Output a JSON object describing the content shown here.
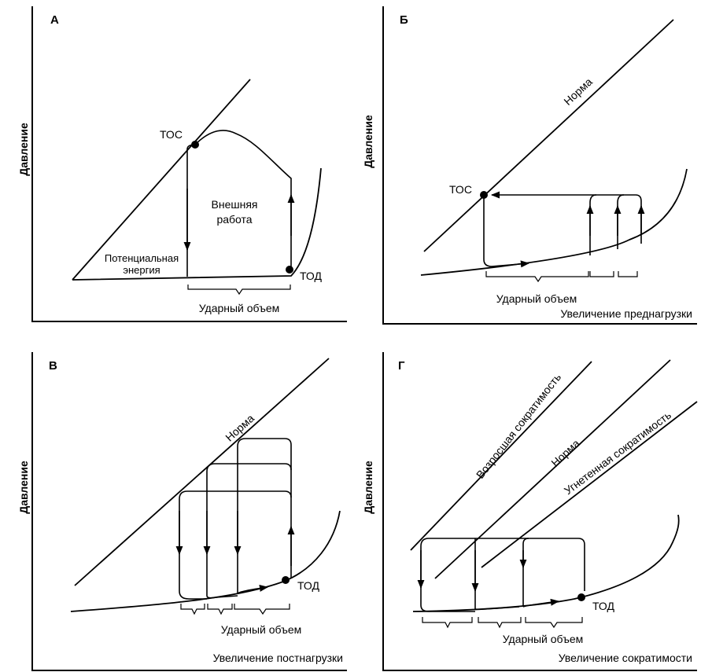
{
  "panels": {
    "a": {
      "label": "А",
      "y_axis": "Давление",
      "esp": "ТОС",
      "edp": "ТОД",
      "work": [
        "Внешняя",
        "работа"
      ],
      "potential": [
        "Потенциальная",
        "энергия"
      ],
      "stroke_volume": "Ударный объем"
    },
    "b": {
      "label": "Б",
      "y_axis": "Давление",
      "norm": "Норма",
      "esp": "ТОС",
      "stroke_volume": "Ударный объем",
      "x_axis": "Увеличение преднагрузки"
    },
    "c": {
      "label": "В",
      "y_axis": "Давление",
      "norm": "Норма",
      "edp": "ТОД",
      "stroke_volume": "Ударный объем",
      "x_axis": "Увеличение постнагрузки"
    },
    "d": {
      "label": "Г",
      "y_axis": "Давление",
      "increased": "Возросшая сократимость",
      "norm": "Норма",
      "decreased": "Угнетенная сократимость",
      "edp": "ТОД",
      "stroke_volume": "Ударный объем",
      "x_axis": "Увеличение сократимости"
    }
  }
}
